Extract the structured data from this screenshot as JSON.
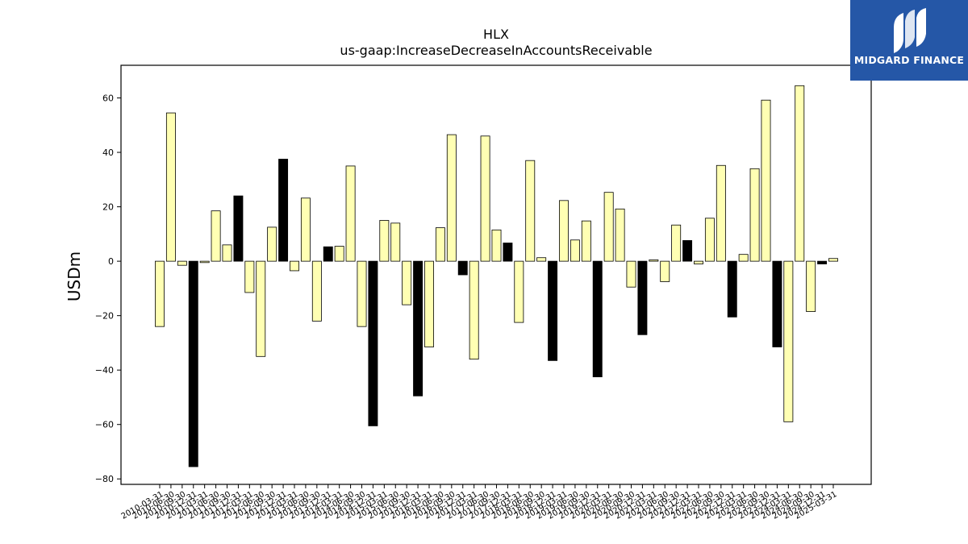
{
  "chart_data": {
    "type": "bar",
    "title": "HLX",
    "subtitle": "us-gaap:IncreaseDecreaseInAccountsReceivable",
    "xlabel": "",
    "ylabel": "USDm",
    "ylim": [
      -82,
      72
    ],
    "yticks": [
      -80,
      -60,
      -40,
      -20,
      0,
      20,
      40,
      60
    ],
    "grid": false,
    "colors": {
      "quarter": "#ffffb3",
      "annual": "#000000",
      "edge": "#000000"
    },
    "categories": [
      "2010-03-31",
      "2010-06-30",
      "2010-09-30",
      "2010-12-31",
      "2011-03-31",
      "2011-06-30",
      "2011-09-30",
      "2011-12-31",
      "2012-03-31",
      "2012-06-30",
      "2012-09-30",
      "2012-12-31",
      "2013-03-31",
      "2013-06-30",
      "2013-09-30",
      "2013-12-31",
      "2014-03-31",
      "2014-06-30",
      "2014-09-30",
      "2014-12-31",
      "2015-03-31",
      "2015-06-30",
      "2015-09-30",
      "2015-12-31",
      "2016-03-31",
      "2016-06-30",
      "2016-09-30",
      "2016-12-31",
      "2017-03-31",
      "2017-06-30",
      "2017-09-30",
      "2017-12-31",
      "2018-03-31",
      "2018-06-30",
      "2018-09-30",
      "2018-12-31",
      "2019-03-31",
      "2019-06-30",
      "2019-09-30",
      "2019-12-31",
      "2020-03-31",
      "2020-06-30",
      "2020-09-30",
      "2020-12-31",
      "2021-03-31",
      "2021-06-30",
      "2021-09-30",
      "2021-12-31",
      "2022-03-31",
      "2022-06-30",
      "2022-09-30",
      "2022-12-31",
      "2023-03-31",
      "2023-06-30",
      "2023-09-30",
      "2023-12-31",
      "2024-03-31",
      "2024-06-30",
      "2024-09-30",
      "2024-12-31",
      "2025-03-31"
    ],
    "values": [
      -24,
      54.5,
      -1.5,
      -75.5,
      -0.5,
      18.5,
      6,
      24,
      -11.5,
      -35,
      12.5,
      37.5,
      -3.5,
      23.2,
      -22,
      5.3,
      5.5,
      35,
      -24,
      -60.5,
      15,
      14,
      -16,
      -49.5,
      -31.5,
      12.3,
      46.5,
      -5,
      -36,
      46,
      11.5,
      6.7,
      -22.5,
      37,
      1.3,
      -36.5,
      22.3,
      7.8,
      14.8,
      -42.5,
      25.3,
      19.2,
      -9.5,
      -27,
      0.5,
      -7.5,
      13.3,
      7.6,
      -1,
      15.8,
      35.2,
      -20.5,
      2.5,
      34,
      59.2,
      -31.5,
      -59,
      64.5,
      -18.5,
      -1,
      1
    ],
    "annual": [
      false,
      false,
      false,
      true,
      false,
      false,
      false,
      true,
      false,
      false,
      false,
      true,
      false,
      false,
      false,
      true,
      false,
      false,
      false,
      true,
      false,
      false,
      false,
      true,
      false,
      false,
      false,
      true,
      false,
      false,
      false,
      true,
      false,
      false,
      false,
      true,
      false,
      false,
      false,
      true,
      false,
      false,
      false,
      true,
      false,
      false,
      false,
      true,
      false,
      false,
      false,
      true,
      false,
      false,
      false,
      true,
      false,
      false,
      false,
      true,
      false
    ]
  },
  "logo": {
    "text": "MIDGARD FINANCE"
  }
}
